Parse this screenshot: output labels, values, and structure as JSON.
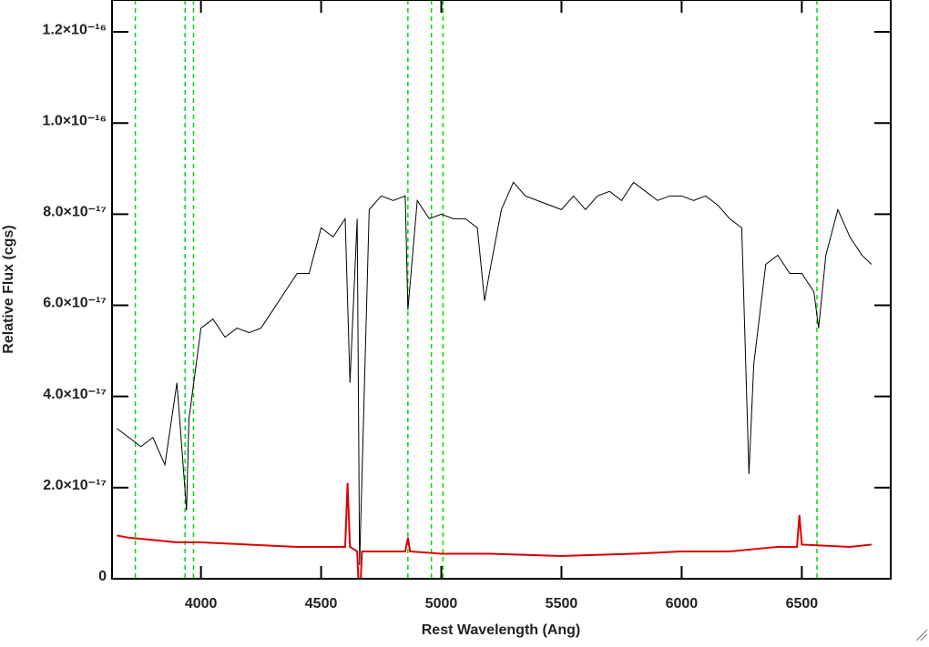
{
  "chart_data": {
    "type": "line",
    "xlabel": "Rest Wavelength (Ang)",
    "ylabel": "Relative Flux (cgs)",
    "xlim": [
      3630,
      6870
    ],
    "ylim": [
      0,
      1.27e-16
    ],
    "xticks": [
      4000,
      4500,
      5000,
      5500,
      6000,
      6500
    ],
    "yticks": [
      0,
      {
        "value": 2e-17,
        "label": "2.0×10⁻¹⁷"
      },
      {
        "value": 4e-17,
        "label": "4.0×10⁻¹⁷"
      },
      {
        "value": 6e-17,
        "label": "6.0×10⁻¹⁷"
      },
      {
        "value": 8e-17,
        "label": "8.0×10⁻¹⁷"
      },
      {
        "value": 1e-16,
        "label": "1.0×10⁻¹⁶"
      },
      {
        "value": 1.2e-16,
        "label": "1.2×10⁻¹⁶"
      }
    ],
    "markers": {
      "color": "#00dd00",
      "x": [
        3727,
        3934,
        3969,
        4861,
        4959,
        5007,
        6563
      ]
    },
    "series": [
      {
        "color": "#000000",
        "x": [
          3650,
          3700,
          3750,
          3800,
          3850,
          3900,
          3940,
          3950,
          4000,
          4050,
          4100,
          4150,
          4200,
          4250,
          4300,
          4350,
          4400,
          4450,
          4500,
          4550,
          4600,
          4620,
          4650,
          4660,
          4700,
          4750,
          4800,
          4850,
          4861,
          4900,
          4950,
          5000,
          5050,
          5100,
          5150,
          5180,
          5200,
          5250,
          5300,
          5350,
          5400,
          5450,
          5500,
          5550,
          5600,
          5650,
          5700,
          5750,
          5800,
          5850,
          5900,
          5950,
          6000,
          6050,
          6100,
          6150,
          6200,
          6250,
          6280,
          6300,
          6350,
          6400,
          6450,
          6500,
          6550,
          6570,
          6600,
          6650,
          6700,
          6750,
          6790
        ],
        "values": [
          3.3e-17,
          3.1e-17,
          2.9e-17,
          3.1e-17,
          2.5e-17,
          4.3e-17,
          1.5e-17,
          3.5e-17,
          5.5e-17,
          5.7e-17,
          5.3e-17,
          5.5e-17,
          5.4e-17,
          5.5e-17,
          5.9e-17,
          6.3e-17,
          6.7e-17,
          6.7e-17,
          7.7e-17,
          7.5e-17,
          7.9e-17,
          4.3e-17,
          7.9e-17,
          3e-18,
          8.1e-17,
          8.4e-17,
          8.3e-17,
          8.4e-17,
          5.9e-17,
          8.3e-17,
          7.9e-17,
          8e-17,
          7.9e-17,
          7.9e-17,
          7.7e-17,
          6.1e-17,
          6.7e-17,
          8.1e-17,
          8.7e-17,
          8.4e-17,
          8.3e-17,
          8.2e-17,
          8.1e-17,
          8.4e-17,
          8.1e-17,
          8.4e-17,
          8.5e-17,
          8.3e-17,
          8.7e-17,
          8.5e-17,
          8.3e-17,
          8.4e-17,
          8.4e-17,
          8.3e-17,
          8.4e-17,
          8.2e-17,
          7.9e-17,
          7.7e-17,
          2.3e-17,
          4.7e-17,
          6.9e-17,
          7.1e-17,
          6.7e-17,
          6.7e-17,
          6.3e-17,
          5.5e-17,
          7.1e-17,
          8.1e-17,
          7.5e-17,
          7.1e-17,
          6.9e-17
        ]
      },
      {
        "color": "#dd0000",
        "x": [
          3650,
          3700,
          3800,
          3900,
          4000,
          4200,
          4400,
          4580,
          4600,
          4610,
          4620,
          4650,
          4660,
          4670,
          4850,
          4861,
          4870,
          5000,
          5200,
          5500,
          5800,
          6000,
          6200,
          6400,
          6480,
          6490,
          6500,
          6700,
          6790
        ],
        "values": [
          9.5e-18,
          9e-18,
          8.5e-18,
          8e-18,
          8e-18,
          7.5e-18,
          7e-18,
          7e-18,
          7e-18,
          2.1e-17,
          7e-18,
          6e-18,
          -6e-18,
          6e-18,
          6e-18,
          9e-18,
          6e-18,
          5.5e-18,
          5.5e-18,
          5e-18,
          5.5e-18,
          6e-18,
          6e-18,
          7e-18,
          7e-18,
          1.4e-17,
          7.5e-18,
          7e-18,
          7.5e-18
        ]
      }
    ]
  }
}
